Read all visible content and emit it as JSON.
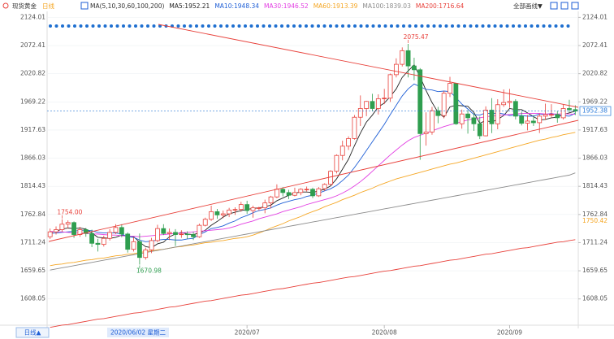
{
  "chart_data": {
    "type": "candlestick",
    "title": "现货黄金",
    "period": "日线",
    "ma_label": "MA(5,10,30,60,100,200)",
    "toolbar": "全部画线▼",
    "period_button": "日线▲",
    "crosshair_label": "2020/06/02 星期二",
    "up_color": "#e8403a",
    "down_color": "#2f9e4f",
    "grid": true,
    "ylim": [
      1554,
      2135
    ],
    "yticks": [
      {
        "value": 2124.01,
        "label": "2124.01"
      },
      {
        "value": 2072.41,
        "label": "2072.41"
      },
      {
        "value": 2020.82,
        "label": "2020.82"
      },
      {
        "value": 1969.22,
        "label": "1969.22"
      },
      {
        "value": 1917.63,
        "label": "1917.63"
      },
      {
        "value": 1866.03,
        "label": "1866.03"
      },
      {
        "value": 1814.43,
        "label": "1814.43"
      },
      {
        "value": 1762.84,
        "label": "1762.84"
      },
      {
        "value": 1711.24,
        "label": "1711.24"
      },
      {
        "value": 1659.65,
        "label": "1659.65"
      },
      {
        "value": 1608.05,
        "label": "1608.05"
      }
    ],
    "price_labels": [
      {
        "value": 1952.38,
        "label": "1952.38",
        "color": "#2a7ad8",
        "line": true
      },
      {
        "value": 1750.42,
        "label": "1750.42",
        "color": "#f5a623"
      }
    ],
    "categories": [
      null,
      null,
      null,
      null,
      null,
      null,
      null,
      null,
      null,
      null,
      null,
      null,
      null,
      null,
      null,
      null,
      null,
      null,
      null,
      null,
      null,
      null,
      null,
      null,
      null,
      null,
      null,
      null,
      null,
      null,
      null,
      null,
      null,
      "2020/07",
      null,
      null,
      null,
      null,
      null,
      null,
      null,
      null,
      null,
      null,
      null,
      null,
      null,
      null,
      null,
      null,
      null,
      null,
      null,
      null,
      null,
      null,
      "2020/08",
      null,
      null,
      null,
      null,
      null,
      null,
      null,
      null,
      null,
      null,
      null,
      null,
      null,
      null,
      null,
      null,
      null,
      null,
      null,
      null,
      "2020/09",
      null,
      null,
      null,
      null,
      null,
      null,
      null,
      null,
      null,
      null,
      null
    ],
    "open": [
      1722,
      1731,
      1735,
      1745,
      1748,
      1726,
      1735,
      1728,
      1710,
      1708,
      1719,
      1730,
      1739,
      1727,
      1699,
      1713,
      1684,
      1698,
      1715,
      1737,
      1728,
      1730,
      1726,
      1727,
      1726,
      1722,
      1743,
      1754,
      1768,
      1762,
      1764,
      1771,
      1772,
      1781,
      1770,
      1775,
      1775,
      1784,
      1795,
      1809,
      1803,
      1798,
      1803,
      1809,
      1809,
      1797,
      1810,
      1818,
      1842,
      1871,
      1888,
      1902,
      1941,
      1957,
      1970,
      1957,
      1975,
      1976,
      2019,
      2038,
      2063,
      2035,
      2028,
      1911,
      1914,
      1953,
      1944,
      1985,
      2003,
      1929,
      1947,
      1940,
      1929,
      1907,
      1954,
      1929,
      1964,
      1968,
      1970,
      1943,
      1930,
      1934,
      1931,
      1943,
      1946,
      1946,
      1940,
      1957,
      1955
    ],
    "high": [
      1737,
      1741,
      1754,
      1752,
      1750,
      1740,
      1738,
      1735,
      1718,
      1724,
      1736,
      1745,
      1745,
      1730,
      1721,
      1728,
      1702,
      1720,
      1744,
      1745,
      1737,
      1736,
      1734,
      1732,
      1731,
      1746,
      1757,
      1779,
      1773,
      1770,
      1775,
      1776,
      1786,
      1788,
      1779,
      1777,
      1790,
      1797,
      1818,
      1813,
      1808,
      1812,
      1811,
      1814,
      1812,
      1813,
      1820,
      1844,
      1873,
      1898,
      1906,
      1945,
      1981,
      1971,
      1984,
      1983,
      1993,
      2021,
      2049,
      2069,
      2075.47,
      2050,
      2031,
      1950,
      1960,
      1960,
      1989,
      2015,
      2004,
      1955,
      1954,
      1948,
      1942,
      1961,
      1976,
      1974,
      1992,
      1993,
      1974,
      1951,
      1945,
      1945,
      1948,
      1966,
      1965,
      1952,
      1964,
      1973,
      1963
    ],
    "low": [
      1718,
      1726,
      1731,
      1737,
      1720,
      1722,
      1722,
      1703,
      1695,
      1704,
      1715,
      1727,
      1721,
      1693,
      1695,
      1670.98,
      1680,
      1692,
      1712,
      1725,
      1716,
      1705,
      1720,
      1718,
      1716,
      1720,
      1741,
      1751,
      1755,
      1756,
      1758,
      1762,
      1768,
      1764,
      1757,
      1770,
      1765,
      1774,
      1793,
      1796,
      1791,
      1796,
      1798,
      1805,
      1793,
      1795,
      1806,
      1816,
      1838,
      1862,
      1881,
      1900,
      1925,
      1943,
      1952,
      1946,
      1965,
      1969,
      2014,
      2034,
      2014,
      2009,
      1863,
      1889,
      1909,
      1930,
      1939,
      1978,
      1927,
      1920,
      1911,
      1916,
      1901,
      1906,
      1912,
      1919,
      1960,
      1958,
      1937,
      1926,
      1917,
      1925,
      1912,
      1936,
      1941,
      1931,
      1937,
      1950,
      1945
    ],
    "close": [
      1731,
      1735,
      1745,
      1748,
      1726,
      1735,
      1728,
      1710,
      1708,
      1719,
      1730,
      1739,
      1727,
      1699,
      1713,
      1684,
      1698,
      1715,
      1737,
      1728,
      1730,
      1726,
      1727,
      1726,
      1722,
      1743,
      1754,
      1768,
      1762,
      1764,
      1771,
      1772,
      1781,
      1770,
      1775,
      1775,
      1784,
      1795,
      1809,
      1803,
      1798,
      1803,
      1809,
      1809,
      1797,
      1810,
      1818,
      1842,
      1871,
      1888,
      1902,
      1941,
      1957,
      1970,
      1957,
      1975,
      1976,
      2019,
      2038,
      2063,
      2035,
      2028,
      1911,
      1914,
      1953,
      1944,
      1985,
      2003,
      1929,
      1947,
      1940,
      1929,
      1907,
      1954,
      1929,
      1964,
      1968,
      1970,
      1943,
      1930,
      1934,
      1931,
      1943,
      1946,
      1946,
      1940,
      1957,
      1955,
      1952.38
    ],
    "high_labels": [
      null,
      null,
      "1754.00",
      null,
      null,
      null,
      null,
      null,
      null,
      null,
      null,
      null,
      null,
      null,
      null,
      null,
      null,
      null,
      null,
      null,
      null,
      null,
      null,
      null,
      null,
      null,
      null,
      null,
      null,
      null,
      null,
      null,
      null,
      null,
      null,
      null,
      null,
      null,
      null,
      null,
      null,
      null,
      null,
      null,
      null,
      null,
      null,
      null,
      null,
      null,
      null,
      null,
      null,
      null,
      null,
      null,
      null,
      null,
      null,
      null,
      "2075.47",
      null,
      null,
      null,
      null,
      null,
      null,
      null,
      null,
      null,
      null,
      null,
      null,
      null,
      null,
      null,
      null,
      null,
      null,
      null,
      null,
      null,
      null,
      null,
      null,
      null,
      null,
      null,
      null
    ],
    "low_labels": [
      null,
      null,
      null,
      null,
      null,
      null,
      null,
      null,
      null,
      null,
      null,
      null,
      null,
      null,
      null,
      "1670.98",
      null,
      null,
      null,
      null,
      null,
      null,
      null,
      null,
      null,
      null,
      null,
      null,
      null,
      null,
      null,
      null,
      null,
      null,
      null,
      null,
      null,
      null,
      null,
      null,
      null,
      null,
      null,
      null,
      null,
      null,
      null,
      null,
      null,
      null,
      null,
      null,
      null,
      null,
      null,
      null,
      null,
      null,
      null,
      null,
      null,
      null,
      null,
      null,
      null,
      null,
      null,
      null,
      null,
      null,
      null,
      null,
      null,
      null,
      null,
      null,
      null,
      null,
      null,
      null,
      null,
      null,
      null,
      null,
      null,
      null,
      null,
      null,
      null
    ],
    "series": [
      {
        "name": "MA5:1952.21",
        "color": "#222222",
        "values": [
          1730,
          1732,
          1736,
          1738,
          1737,
          1738,
          1736,
          1729,
          1721,
          1720,
          1719,
          1721,
          1725,
          1723,
          1722,
          1712,
          1704,
          1702,
          1709,
          1712,
          1722,
          1727,
          1730,
          1727,
          1726,
          1729,
          1734,
          1743,
          1750,
          1758,
          1764,
          1767,
          1770,
          1772,
          1774,
          1775,
          1777,
          1780,
          1788,
          1793,
          1798,
          1802,
          1804,
          1804,
          1803,
          1806,
          1809,
          1815,
          1828,
          1846,
          1864,
          1889,
          1912,
          1932,
          1945,
          1960,
          1967,
          1979,
          1993,
          2014,
          2026,
          2037,
          2015,
          1990,
          1968,
          1950,
          1941,
          1960,
          1963,
          1962,
          1961,
          1950,
          1930,
          1935,
          1932,
          1937,
          1944,
          1957,
          1955,
          1955,
          1949,
          1942,
          1936,
          1937,
          1940,
          1941,
          1946,
          1949,
          1952.21
        ]
      },
      {
        "name": "MA10:1948.34",
        "color": "#1f5fd6",
        "values": [
          1728,
          1729,
          1730,
          1731,
          1732,
          1734,
          1734,
          1733,
          1730,
          1729,
          1729,
          1729,
          1727,
          1722,
          1721,
          1716,
          1713,
          1714,
          1716,
          1717,
          1717,
          1716,
          1716,
          1718,
          1719,
          1726,
          1731,
          1737,
          1739,
          1742,
          1747,
          1751,
          1757,
          1761,
          1766,
          1770,
          1772,
          1775,
          1780,
          1784,
          1787,
          1790,
          1792,
          1796,
          1798,
          1802,
          1806,
          1810,
          1816,
          1825,
          1835,
          1849,
          1864,
          1880,
          1896,
          1912,
          1928,
          1946,
          1963,
          1980,
          1993,
          2002,
          1997,
          1992,
          1991,
          1988,
          1989,
          1988,
          1977,
          1965,
          1956,
          1946,
          1945,
          1949,
          1947,
          1949,
          1947,
          1944,
          1945,
          1944,
          1943,
          1943,
          1947,
          1946,
          1948,
          1945,
          1944,
          1943,
          1948.34
        ]
      },
      {
        "name": "MA30:1946.52",
        "color": "#e23ee2",
        "values": [
          1732,
          1731,
          1731,
          1730,
          1729,
          1729,
          1728,
          1727,
          1727,
          1726,
          1725,
          1725,
          1724,
          1723,
          1723,
          1722,
          1723,
          1724,
          1725,
          1726,
          1727,
          1728,
          1729,
          1730,
          1731,
          1732,
          1733,
          1734,
          1735,
          1736,
          1738,
          1741,
          1745,
          1748,
          1751,
          1755,
          1758,
          1761,
          1764,
          1768,
          1771,
          1774,
          1777,
          1781,
          1784,
          1787,
          1790,
          1793,
          1797,
          1802,
          1808,
          1815,
          1823,
          1832,
          1842,
          1852,
          1862,
          1872,
          1881,
          1890,
          1898,
          1904,
          1908,
          1912,
          1916,
          1920,
          1924,
          1927,
          1930,
          1933,
          1936,
          1938,
          1940,
          1942,
          1943,
          1944,
          1945,
          1946,
          1947,
          1948,
          1948,
          1948,
          1948,
          1947,
          1947,
          1947,
          1947,
          1947,
          1946.52
        ]
      },
      {
        "name": "MA60:1913.39",
        "color": "#f5a623",
        "values": [
          1669,
          1671,
          1672,
          1674,
          1675,
          1677,
          1679,
          1680,
          1682,
          1683,
          1685,
          1687,
          1688,
          1690,
          1691,
          1693,
          1695,
          1696,
          1698,
          1699,
          1701,
          1703,
          1704,
          1706,
          1707,
          1709,
          1711,
          1712,
          1714,
          1715,
          1717,
          1719,
          1720,
          1722,
          1725,
          1729,
          1733,
          1738,
          1742,
          1746,
          1751,
          1755,
          1759,
          1764,
          1768,
          1772,
          1777,
          1781,
          1785,
          1790,
          1794,
          1798,
          1803,
          1807,
          1811,
          1816,
          1820,
          1824,
          1828,
          1831,
          1834,
          1837,
          1840,
          1843,
          1846,
          1849,
          1852,
          1855,
          1857,
          1860,
          1863,
          1866,
          1869,
          1872,
          1875,
          1878,
          1881,
          1884,
          1887,
          1890,
          1893,
          1896,
          1899,
          1901,
          1904,
          1906,
          1909,
          1911,
          1913.39
        ]
      },
      {
        "name": "MA100:1839.03",
        "color": "#8c8c8c",
        "values": [
          1661,
          1663,
          1665,
          1667,
          1669,
          1671,
          1673,
          1675,
          1677,
          1679,
          1681,
          1683,
          1685,
          1687,
          1689,
          1691,
          1693,
          1695,
          1697,
          1699,
          1701,
          1703,
          1705,
          1707,
          1709,
          1711,
          1713,
          1715,
          1717,
          1719,
          1721,
          1723,
          1725,
          1727,
          1729,
          1731,
          1733,
          1735,
          1737,
          1739,
          1741,
          1743,
          1745,
          1747,
          1749,
          1751,
          1753,
          1755,
          1757,
          1759,
          1761,
          1763,
          1765,
          1767,
          1769,
          1771,
          1773,
          1775,
          1777,
          1779,
          1781,
          1783,
          1785,
          1787,
          1789,
          1791,
          1793,
          1795,
          1797,
          1799,
          1801,
          1803,
          1805,
          1807,
          1809,
          1811,
          1813,
          1815,
          1817,
          1819,
          1821,
          1823,
          1825,
          1827,
          1829,
          1831,
          1833,
          1835,
          1839.03
        ]
      },
      {
        "name": "MA200:1716.64",
        "color": "#e8403a",
        "values": [
          1556,
          1558,
          1560,
          1561,
          1563,
          1565,
          1567,
          1569,
          1571,
          1572,
          1574,
          1576,
          1578,
          1580,
          1582,
          1583,
          1585,
          1587,
          1589,
          1591,
          1593,
          1594,
          1596,
          1598,
          1600,
          1602,
          1604,
          1605,
          1607,
          1609,
          1611,
          1613,
          1615,
          1616,
          1618,
          1620,
          1622,
          1624,
          1626,
          1627,
          1629,
          1631,
          1633,
          1635,
          1637,
          1638,
          1640,
          1642,
          1644,
          1646,
          1648,
          1649,
          1651,
          1653,
          1655,
          1657,
          1659,
          1660,
          1662,
          1664,
          1666,
          1668,
          1669,
          1671,
          1673,
          1675,
          1677,
          1679,
          1680,
          1682,
          1684,
          1686,
          1688,
          1690,
          1691,
          1693,
          1695,
          1697,
          1699,
          1701,
          1702,
          1704,
          1706,
          1708,
          1710,
          1712,
          1713,
          1715,
          1716.64
        ]
      }
    ]
  }
}
